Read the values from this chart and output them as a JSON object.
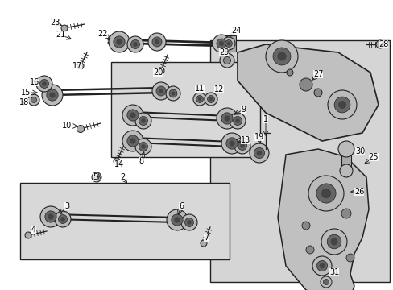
{
  "bg_color": "#ffffff",
  "fig_width": 4.89,
  "fig_height": 3.6,
  "dpi": 100,
  "panel_color": "#d8d8d8",
  "part_color": "#c8c8c8",
  "line_color": "#222222"
}
